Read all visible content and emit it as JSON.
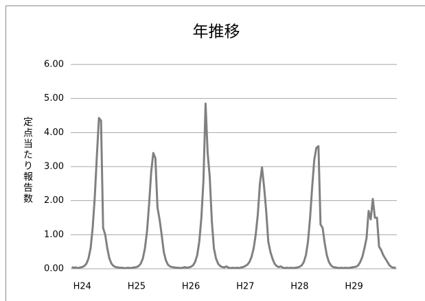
{
  "chart_data": {
    "type": "line",
    "title": "年推移",
    "y_label": "定点当たり報告数",
    "categories": [
      null,
      null,
      null,
      null,
      null,
      "H24",
      null,
      null,
      null,
      null,
      null,
      null,
      null,
      null,
      null,
      null,
      null,
      null,
      null,
      null,
      null,
      null,
      null,
      null,
      null,
      null,
      null,
      null,
      null,
      null,
      null,
      "H25",
      null,
      null,
      null,
      null,
      null,
      null,
      null,
      null,
      null,
      null,
      null,
      null,
      null,
      null,
      null,
      null,
      null,
      null,
      null,
      null,
      null,
      null,
      null,
      null,
      null,
      "H26",
      null,
      null,
      null,
      null,
      null,
      null,
      null,
      null,
      null,
      null,
      null,
      null,
      null,
      null,
      null,
      null,
      null,
      null,
      null,
      null,
      null,
      null,
      null,
      null,
      null,
      "H27",
      null,
      null,
      null,
      null,
      null,
      null,
      null,
      null,
      null,
      null,
      null,
      null,
      null,
      null,
      null,
      null,
      null,
      null,
      null,
      null,
      null,
      null,
      null,
      null,
      null,
      "H28",
      null,
      null,
      null,
      null,
      null,
      null,
      null,
      null,
      null,
      null,
      null,
      null,
      null,
      null,
      null,
      null,
      null,
      null,
      null,
      null,
      null,
      null,
      null,
      null,
      null,
      "H29",
      null,
      null,
      null,
      null,
      null,
      null,
      null,
      null,
      null,
      null,
      null,
      null,
      null,
      null,
      null,
      null,
      null,
      null,
      null,
      null
    ],
    "series": [
      {
        "color": "#808080",
        "values": [
          0.05,
          0.03,
          0.04,
          0.02,
          0.04,
          0.05,
          0.08,
          0.15,
          0.3,
          0.6,
          1.2,
          2.1,
          3.3,
          4.43,
          4.35,
          1.2,
          1.0,
          0.6,
          0.3,
          0.15,
          0.08,
          0.05,
          0.04,
          0.03,
          0.03,
          0.02,
          0.02,
          0.03,
          0.02,
          0.03,
          0.04,
          0.05,
          0.08,
          0.15,
          0.3,
          0.6,
          1.1,
          1.9,
          2.85,
          3.4,
          3.25,
          1.8,
          1.45,
          1.0,
          0.5,
          0.25,
          0.12,
          0.07,
          0.05,
          0.04,
          0.03,
          0.03,
          0.02,
          0.03,
          0.05,
          0.03,
          0.04,
          0.06,
          0.1,
          0.2,
          0.4,
          0.8,
          1.5,
          2.6,
          4.85,
          3.4,
          2.7,
          1.4,
          0.6,
          0.3,
          0.15,
          0.08,
          0.05,
          0.04,
          0.07,
          0.03,
          0.02,
          0.03,
          0.02,
          0.03,
          0.02,
          0.04,
          0.05,
          0.08,
          0.12,
          0.2,
          0.35,
          0.6,
          1.0,
          1.6,
          2.5,
          2.98,
          2.4,
          1.7,
          0.8,
          0.5,
          0.3,
          0.15,
          0.08,
          0.05,
          0.07,
          0.03,
          0.02,
          0.03,
          0.02,
          0.03,
          0.02,
          0.03,
          0.04,
          0.06,
          0.1,
          0.2,
          0.4,
          0.8,
          1.5,
          2.4,
          3.2,
          3.55,
          3.6,
          1.3,
          1.2,
          0.75,
          0.4,
          0.2,
          0.1,
          0.05,
          0.04,
          0.03,
          0.02,
          0.03,
          0.02,
          0.03,
          0.02,
          0.03,
          0.04,
          0.05,
          0.06,
          0.1,
          0.2,
          0.35,
          0.6,
          0.9,
          1.7,
          1.45,
          2.05,
          1.5,
          1.5,
          0.65,
          0.55,
          0.4,
          0.3,
          0.2,
          0.1,
          0.05,
          0.03,
          0.04
        ]
      }
    ],
    "ylim": [
      0,
      6
    ],
    "yticks": [
      {
        "value": 0,
        "label": "0.00"
      },
      {
        "value": 1,
        "label": "1.00"
      },
      {
        "value": 2,
        "label": "2.00"
      },
      {
        "value": 3,
        "label": "3.00"
      },
      {
        "value": 4,
        "label": "4.00"
      },
      {
        "value": 5,
        "label": "5.00"
      },
      {
        "value": 6,
        "label": "6.00"
      }
    ],
    "grid": true
  }
}
